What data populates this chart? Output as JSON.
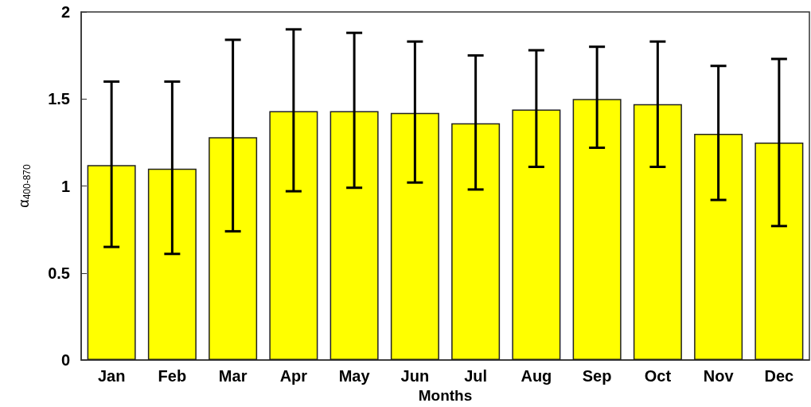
{
  "chart_data": {
    "type": "bar",
    "xlabel": "Months",
    "ylabel": "α$_{400-870}$",
    "categories": [
      "Jan",
      "Feb",
      "Mar",
      "Apr",
      "May",
      "Jun",
      "Jul",
      "Aug",
      "Sep",
      "Oct",
      "Nov",
      "Dec"
    ],
    "values": [
      1.12,
      1.1,
      1.28,
      1.43,
      1.43,
      1.42,
      1.36,
      1.44,
      1.5,
      1.47,
      1.3,
      1.25
    ],
    "errors": [
      [
        0.65,
        1.6
      ],
      [
        0.61,
        1.6
      ],
      [
        0.74,
        1.84
      ],
      [
        0.97,
        1.9
      ],
      [
        0.99,
        1.88
      ],
      [
        1.02,
        1.83
      ],
      [
        0.98,
        1.75
      ],
      [
        1.11,
        1.78
      ],
      [
        1.22,
        1.8
      ],
      [
        1.11,
        1.83
      ],
      [
        0.92,
        1.69
      ],
      [
        0.77,
        1.73
      ]
    ],
    "color": "#ffff00",
    "ylim": [
      0,
      2
    ],
    "yticks": [
      0,
      0.5,
      1,
      1.5,
      2
    ],
    "grid": false
  }
}
